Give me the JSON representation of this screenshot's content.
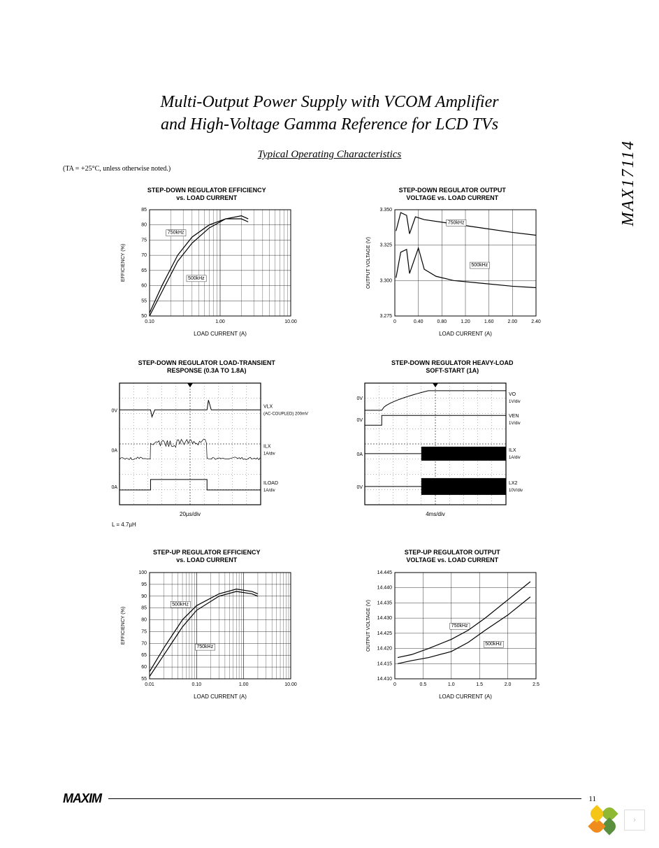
{
  "page": {
    "main_title_line1": "Multi-Output Power Supply with VCOM Amplifier",
    "main_title_line2": "and High-Voltage Gamma Reference for LCD TVs",
    "section_title": "Typical Operating Characteristics",
    "condition_note": "(TA = +25°C, unless otherwise noted.)",
    "part_number": "MAX17114",
    "page_number": "11",
    "maxim_logo": "MAXIM"
  },
  "chart1": {
    "title_line1": "STEP-DOWN REGULATOR EFFICIENCY",
    "title_line2": "vs. LOAD CURRENT",
    "type": "line",
    "xscale": "log",
    "yscale": "linear",
    "xlabel": "LOAD CURRENT (A)",
    "ylabel": "EFFICIENCY (%)",
    "xlim": [
      0.1,
      10.0
    ],
    "ylim": [
      50,
      85
    ],
    "xticks": [
      "0.10",
      "1.00",
      "10.00"
    ],
    "yticks": [
      "50",
      "55",
      "60",
      "65",
      "70",
      "75",
      "80",
      "85"
    ],
    "grid_color": "#000000",
    "background_color": "#ffffff",
    "line_color": "#000000",
    "series": [
      {
        "label": "750kHz",
        "points": [
          [
            0.1,
            51
          ],
          [
            0.15,
            60
          ],
          [
            0.25,
            70
          ],
          [
            0.4,
            76
          ],
          [
            0.7,
            80
          ],
          [
            1.2,
            82
          ],
          [
            2.0,
            82
          ],
          [
            2.5,
            81
          ]
        ]
      },
      {
        "label": "500kHz",
        "points": [
          [
            0.1,
            50
          ],
          [
            0.15,
            58
          ],
          [
            0.25,
            68
          ],
          [
            0.4,
            74
          ],
          [
            0.7,
            79
          ],
          [
            1.2,
            82
          ],
          [
            2.0,
            83
          ],
          [
            2.5,
            82
          ]
        ]
      }
    ],
    "label_positions": {
      "750kHz": [
        0.18,
        77
      ],
      "500kHz": [
        0.35,
        62
      ]
    }
  },
  "chart2": {
    "title_line1": "STEP-DOWN REGULATOR OUTPUT",
    "title_line2": "VOLTAGE vs. LOAD CURRENT",
    "type": "line",
    "xscale": "linear",
    "yscale": "linear",
    "xlabel": "LOAD CURRENT (A)",
    "ylabel": "OUTPUT VOLTAGE (V)",
    "xlim": [
      0,
      2.4
    ],
    "ylim": [
      3.275,
      3.35
    ],
    "xticks": [
      "0",
      "0.40",
      "0.80",
      "1.20",
      "1.60",
      "2.00",
      "2.40"
    ],
    "yticks": [
      "3.275",
      "3.300",
      "3.325",
      "3.350"
    ],
    "grid_color": "#000000",
    "background_color": "#ffffff",
    "line_color": "#000000",
    "series": [
      {
        "label": "750kHz",
        "points": [
          [
            0.02,
            3.335
          ],
          [
            0.1,
            3.348
          ],
          [
            0.2,
            3.346
          ],
          [
            0.25,
            3.333
          ],
          [
            0.35,
            3.345
          ],
          [
            0.5,
            3.343
          ],
          [
            1.0,
            3.34
          ],
          [
            1.5,
            3.337
          ],
          [
            2.0,
            3.334
          ],
          [
            2.4,
            3.332
          ]
        ]
      },
      {
        "label": "500kHz",
        "points": [
          [
            0.02,
            3.302
          ],
          [
            0.1,
            3.32
          ],
          [
            0.2,
            3.322
          ],
          [
            0.25,
            3.305
          ],
          [
            0.4,
            3.323
          ],
          [
            0.5,
            3.308
          ],
          [
            0.7,
            3.303
          ],
          [
            1.0,
            3.3
          ],
          [
            1.5,
            3.298
          ],
          [
            2.0,
            3.296
          ],
          [
            2.4,
            3.295
          ]
        ]
      }
    ],
    "label_positions": {
      "750kHz": [
        0.9,
        3.34
      ],
      "500kHz": [
        1.3,
        3.31
      ]
    }
  },
  "chart3": {
    "title_line1": "STEP-DOWN REGULATOR LOAD-TRANSIENT",
    "title_line2": "RESPONSE (0.3A TO 1.8A)",
    "type": "scope",
    "xlabel_time": "20µs/div",
    "footer_note": "L = 4.7µH",
    "background_color": "#ffffff",
    "border_color": "#000000",
    "traces": [
      {
        "name": "VLX",
        "ref": "0V",
        "scale": "(AC-COUPLED) 200mV/div",
        "y_center": 0.22
      },
      {
        "name": "ILX",
        "ref": "0A",
        "scale": "1A/div",
        "y_center": 0.55
      },
      {
        "name": "ILOAD",
        "ref": "0A",
        "scale": "1A/div",
        "y_center": 0.85
      }
    ]
  },
  "chart4": {
    "title_line1": "STEP-DOWN REGULATOR HEAVY-LOAD",
    "title_line2": "SOFT-START (1A)",
    "type": "scope",
    "xlabel_time": "4ms/div",
    "background_color": "#ffffff",
    "border_color": "#000000",
    "traces": [
      {
        "name": "VO",
        "ref": "0V",
        "scale": "1V/div",
        "y_center": 0.12
      },
      {
        "name": "VEN",
        "ref": "0V",
        "scale": "1V/div",
        "y_center": 0.3
      },
      {
        "name": "ILX",
        "ref": "0A",
        "scale": "1A/div",
        "y_center": 0.58
      },
      {
        "name": "LX2",
        "ref": "0V",
        "scale": "10V/div",
        "y_center": 0.85
      }
    ]
  },
  "chart5": {
    "title_line1": "STEP-UP REGULATOR EFFICIENCY",
    "title_line2": "vs. LOAD CURRENT",
    "type": "line",
    "xscale": "log",
    "yscale": "linear",
    "xlabel": "LOAD CURRENT (A)",
    "ylabel": "EFFICIENCY (%)",
    "xlim": [
      0.01,
      10.0
    ],
    "ylim": [
      55,
      100
    ],
    "xticks": [
      "0.01",
      "0.10",
      "1.00",
      "10.00"
    ],
    "yticks": [
      "55",
      "60",
      "65",
      "70",
      "75",
      "80",
      "85",
      "90",
      "95",
      "100"
    ],
    "grid_color": "#000000",
    "background_color": "#ffffff",
    "line_color": "#000000",
    "series": [
      {
        "label": "500kHz",
        "points": [
          [
            0.01,
            58
          ],
          [
            0.02,
            68
          ],
          [
            0.05,
            80
          ],
          [
            0.1,
            86
          ],
          [
            0.3,
            91
          ],
          [
            0.7,
            93
          ],
          [
            1.5,
            92
          ],
          [
            2.0,
            91
          ]
        ]
      },
      {
        "label": "750kHz",
        "points": [
          [
            0.01,
            56
          ],
          [
            0.02,
            65
          ],
          [
            0.05,
            77
          ],
          [
            0.1,
            84
          ],
          [
            0.3,
            90
          ],
          [
            0.7,
            92
          ],
          [
            1.5,
            91
          ],
          [
            2.0,
            90
          ]
        ]
      }
    ],
    "label_positions": {
      "500kHz": [
        0.03,
        86
      ],
      "750kHz": [
        0.1,
        68
      ]
    }
  },
  "chart6": {
    "title_line1": "STEP-UP REGULATOR OUTPUT",
    "title_line2": "VOLTAGE vs. LOAD CURRENT",
    "type": "line",
    "xscale": "linear",
    "yscale": "linear",
    "xlabel": "LOAD CURRENT (A)",
    "ylabel": "OUTPUT VOLTAGE (V)",
    "xlim": [
      0,
      2.5
    ],
    "ylim": [
      14.41,
      14.445
    ],
    "xticks": [
      "0",
      "0.5",
      "1.0",
      "1.5",
      "2.0",
      "2.5"
    ],
    "yticks": [
      "14.410",
      "14.415",
      "14.420",
      "14.425",
      "14.430",
      "14.435",
      "14.440",
      "14.445"
    ],
    "grid_color": "#000000",
    "background_color": "#ffffff",
    "line_color": "#000000",
    "series": [
      {
        "label": "750kHz",
        "points": [
          [
            0.05,
            14.417
          ],
          [
            0.3,
            14.418
          ],
          [
            0.6,
            14.42
          ],
          [
            1.0,
            14.423
          ],
          [
            1.3,
            14.426
          ],
          [
            1.6,
            14.43
          ],
          [
            2.0,
            14.436
          ],
          [
            2.4,
            14.442
          ]
        ]
      },
      {
        "label": "500kHz",
        "points": [
          [
            0.05,
            14.415
          ],
          [
            0.3,
            14.416
          ],
          [
            0.6,
            14.417
          ],
          [
            1.0,
            14.419
          ],
          [
            1.3,
            14.422
          ],
          [
            1.6,
            14.426
          ],
          [
            2.0,
            14.431
          ],
          [
            2.4,
            14.437
          ]
        ]
      }
    ],
    "label_positions": {
      "750kHz": [
        1.0,
        14.427
      ],
      "500kHz": [
        1.6,
        14.421
      ]
    }
  },
  "corner": {
    "petal_colors": [
      "#8fb935",
      "#5a8f3e",
      "#f08c1e",
      "#f5c518"
    ]
  }
}
